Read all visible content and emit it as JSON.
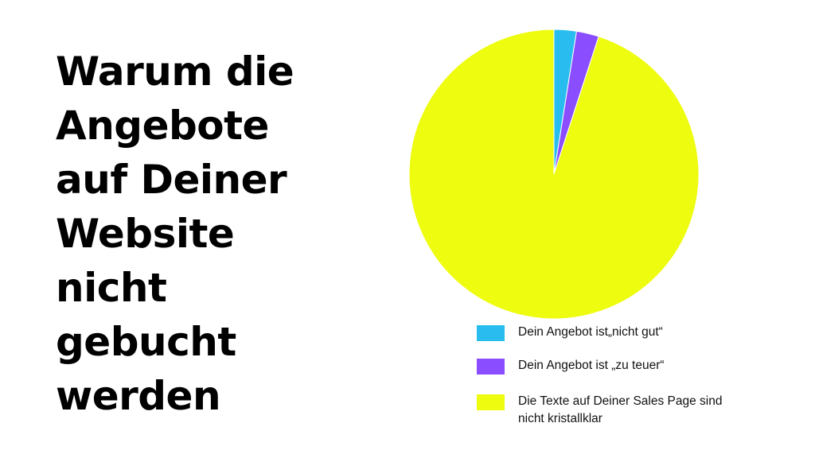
{
  "title": "Warum die Angebote auf Deiner Website nicht gebucht werden",
  "chart_data": {
    "type": "pie",
    "title": "Warum die Angebote auf Deiner Website nicht gebucht werden",
    "slices": [
      {
        "label": "Dein Angebot ist„nicht gut“",
        "value": 2.5,
        "color": "#29bdef"
      },
      {
        "label": "Dein Angebot ist „zu teuer“",
        "value": 2.5,
        "color": "#8a4dff"
      },
      {
        "label": "Die Texte auf Deiner Sales Page sind nicht kristallklar",
        "value": 95,
        "color": "#eefc0f"
      }
    ],
    "start_angle": "top",
    "direction": "clockwise",
    "legend_placement": "bottom-right"
  }
}
